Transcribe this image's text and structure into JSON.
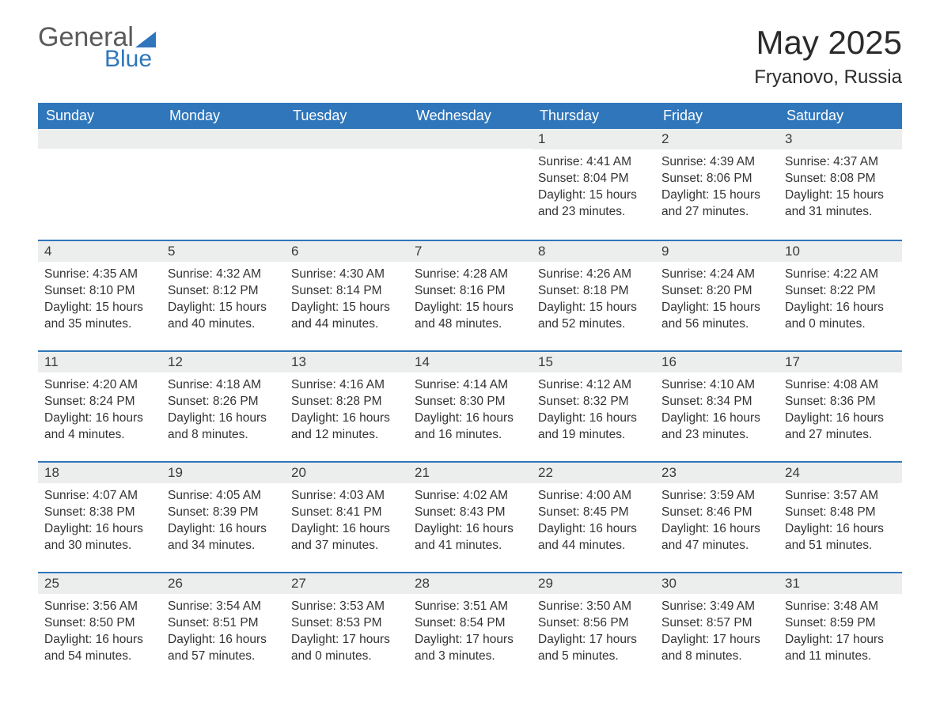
{
  "brand": {
    "name1": "General",
    "name2": "Blue",
    "accent": "#2f76bb"
  },
  "title": "May 2025",
  "location": "Fryanovo, Russia",
  "weekdays": [
    "Sunday",
    "Monday",
    "Tuesday",
    "Wednesday",
    "Thursday",
    "Friday",
    "Saturday"
  ],
  "colors": {
    "header_bg": "#2f76bb",
    "header_text": "#ffffff",
    "daynum_bg": "#eceeee",
    "text": "#333333",
    "border": "#2f76bb",
    "page_bg": "#ffffff"
  },
  "fonts": {
    "title_size": 42,
    "location_size": 24,
    "weekday_size": 18,
    "body_size": 15.5
  },
  "weeks": [
    [
      {
        "empty": true
      },
      {
        "empty": true
      },
      {
        "empty": true
      },
      {
        "empty": true
      },
      {
        "n": "1",
        "sunrise": "Sunrise: 4:41 AM",
        "sunset": "Sunset: 8:04 PM",
        "day1": "Daylight: 15 hours",
        "day2": "and 23 minutes."
      },
      {
        "n": "2",
        "sunrise": "Sunrise: 4:39 AM",
        "sunset": "Sunset: 8:06 PM",
        "day1": "Daylight: 15 hours",
        "day2": "and 27 minutes."
      },
      {
        "n": "3",
        "sunrise": "Sunrise: 4:37 AM",
        "sunset": "Sunset: 8:08 PM",
        "day1": "Daylight: 15 hours",
        "day2": "and 31 minutes."
      }
    ],
    [
      {
        "n": "4",
        "sunrise": "Sunrise: 4:35 AM",
        "sunset": "Sunset: 8:10 PM",
        "day1": "Daylight: 15 hours",
        "day2": "and 35 minutes."
      },
      {
        "n": "5",
        "sunrise": "Sunrise: 4:32 AM",
        "sunset": "Sunset: 8:12 PM",
        "day1": "Daylight: 15 hours",
        "day2": "and 40 minutes."
      },
      {
        "n": "6",
        "sunrise": "Sunrise: 4:30 AM",
        "sunset": "Sunset: 8:14 PM",
        "day1": "Daylight: 15 hours",
        "day2": "and 44 minutes."
      },
      {
        "n": "7",
        "sunrise": "Sunrise: 4:28 AM",
        "sunset": "Sunset: 8:16 PM",
        "day1": "Daylight: 15 hours",
        "day2": "and 48 minutes."
      },
      {
        "n": "8",
        "sunrise": "Sunrise: 4:26 AM",
        "sunset": "Sunset: 8:18 PM",
        "day1": "Daylight: 15 hours",
        "day2": "and 52 minutes."
      },
      {
        "n": "9",
        "sunrise": "Sunrise: 4:24 AM",
        "sunset": "Sunset: 8:20 PM",
        "day1": "Daylight: 15 hours",
        "day2": "and 56 minutes."
      },
      {
        "n": "10",
        "sunrise": "Sunrise: 4:22 AM",
        "sunset": "Sunset: 8:22 PM",
        "day1": "Daylight: 16 hours",
        "day2": "and 0 minutes."
      }
    ],
    [
      {
        "n": "11",
        "sunrise": "Sunrise: 4:20 AM",
        "sunset": "Sunset: 8:24 PM",
        "day1": "Daylight: 16 hours",
        "day2": "and 4 minutes."
      },
      {
        "n": "12",
        "sunrise": "Sunrise: 4:18 AM",
        "sunset": "Sunset: 8:26 PM",
        "day1": "Daylight: 16 hours",
        "day2": "and 8 minutes."
      },
      {
        "n": "13",
        "sunrise": "Sunrise: 4:16 AM",
        "sunset": "Sunset: 8:28 PM",
        "day1": "Daylight: 16 hours",
        "day2": "and 12 minutes."
      },
      {
        "n": "14",
        "sunrise": "Sunrise: 4:14 AM",
        "sunset": "Sunset: 8:30 PM",
        "day1": "Daylight: 16 hours",
        "day2": "and 16 minutes."
      },
      {
        "n": "15",
        "sunrise": "Sunrise: 4:12 AM",
        "sunset": "Sunset: 8:32 PM",
        "day1": "Daylight: 16 hours",
        "day2": "and 19 minutes."
      },
      {
        "n": "16",
        "sunrise": "Sunrise: 4:10 AM",
        "sunset": "Sunset: 8:34 PM",
        "day1": "Daylight: 16 hours",
        "day2": "and 23 minutes."
      },
      {
        "n": "17",
        "sunrise": "Sunrise: 4:08 AM",
        "sunset": "Sunset: 8:36 PM",
        "day1": "Daylight: 16 hours",
        "day2": "and 27 minutes."
      }
    ],
    [
      {
        "n": "18",
        "sunrise": "Sunrise: 4:07 AM",
        "sunset": "Sunset: 8:38 PM",
        "day1": "Daylight: 16 hours",
        "day2": "and 30 minutes."
      },
      {
        "n": "19",
        "sunrise": "Sunrise: 4:05 AM",
        "sunset": "Sunset: 8:39 PM",
        "day1": "Daylight: 16 hours",
        "day2": "and 34 minutes."
      },
      {
        "n": "20",
        "sunrise": "Sunrise: 4:03 AM",
        "sunset": "Sunset: 8:41 PM",
        "day1": "Daylight: 16 hours",
        "day2": "and 37 minutes."
      },
      {
        "n": "21",
        "sunrise": "Sunrise: 4:02 AM",
        "sunset": "Sunset: 8:43 PM",
        "day1": "Daylight: 16 hours",
        "day2": "and 41 minutes."
      },
      {
        "n": "22",
        "sunrise": "Sunrise: 4:00 AM",
        "sunset": "Sunset: 8:45 PM",
        "day1": "Daylight: 16 hours",
        "day2": "and 44 minutes."
      },
      {
        "n": "23",
        "sunrise": "Sunrise: 3:59 AM",
        "sunset": "Sunset: 8:46 PM",
        "day1": "Daylight: 16 hours",
        "day2": "and 47 minutes."
      },
      {
        "n": "24",
        "sunrise": "Sunrise: 3:57 AM",
        "sunset": "Sunset: 8:48 PM",
        "day1": "Daylight: 16 hours",
        "day2": "and 51 minutes."
      }
    ],
    [
      {
        "n": "25",
        "sunrise": "Sunrise: 3:56 AM",
        "sunset": "Sunset: 8:50 PM",
        "day1": "Daylight: 16 hours",
        "day2": "and 54 minutes."
      },
      {
        "n": "26",
        "sunrise": "Sunrise: 3:54 AM",
        "sunset": "Sunset: 8:51 PM",
        "day1": "Daylight: 16 hours",
        "day2": "and 57 minutes."
      },
      {
        "n": "27",
        "sunrise": "Sunrise: 3:53 AM",
        "sunset": "Sunset: 8:53 PM",
        "day1": "Daylight: 17 hours",
        "day2": "and 0 minutes."
      },
      {
        "n": "28",
        "sunrise": "Sunrise: 3:51 AM",
        "sunset": "Sunset: 8:54 PM",
        "day1": "Daylight: 17 hours",
        "day2": "and 3 minutes."
      },
      {
        "n": "29",
        "sunrise": "Sunrise: 3:50 AM",
        "sunset": "Sunset: 8:56 PM",
        "day1": "Daylight: 17 hours",
        "day2": "and 5 minutes."
      },
      {
        "n": "30",
        "sunrise": "Sunrise: 3:49 AM",
        "sunset": "Sunset: 8:57 PM",
        "day1": "Daylight: 17 hours",
        "day2": "and 8 minutes."
      },
      {
        "n": "31",
        "sunrise": "Sunrise: 3:48 AM",
        "sunset": "Sunset: 8:59 PM",
        "day1": "Daylight: 17 hours",
        "day2": "and 11 minutes."
      }
    ]
  ]
}
